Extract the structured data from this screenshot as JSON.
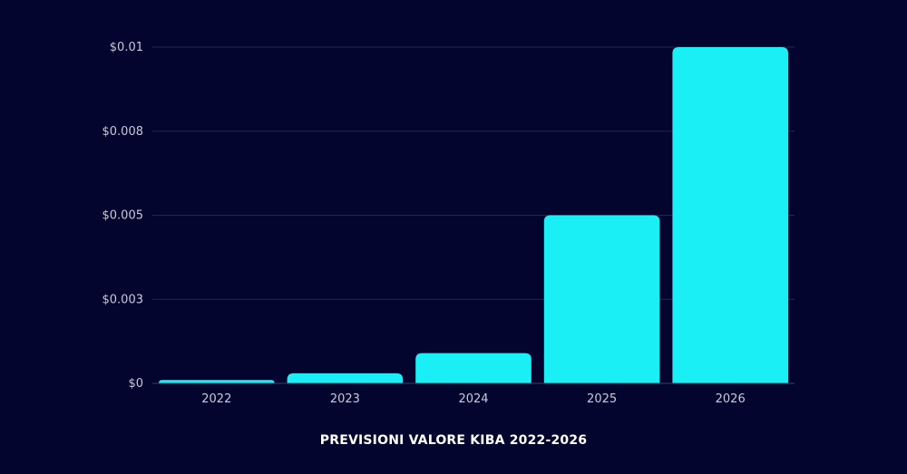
{
  "chart_data": {
    "type": "bar",
    "title": "PREVISIONI VALORE KIBA 2022-2026",
    "xlabel": "",
    "ylabel": "",
    "categories": [
      "2022",
      "2023",
      "2024",
      "2025",
      "2026"
    ],
    "values": [
      0.0001,
      0.0003,
      0.0009,
      0.005,
      0.01
    ],
    "ylim": [
      0,
      0.01
    ],
    "yticks": [
      0,
      0.0025,
      0.005,
      0.0075,
      0.01
    ],
    "ytick_labels": [
      "$0",
      "$0.003",
      "$0.005",
      "$0.008",
      "$0.01"
    ],
    "grid": "horizontal",
    "legend": "none",
    "colors": {
      "background": "#03052e",
      "bar": "#1aeff5",
      "grid": "#23264d",
      "axis": "#3a3d66",
      "tick_text": "#c7c9d9",
      "title": "#ffffff"
    }
  }
}
